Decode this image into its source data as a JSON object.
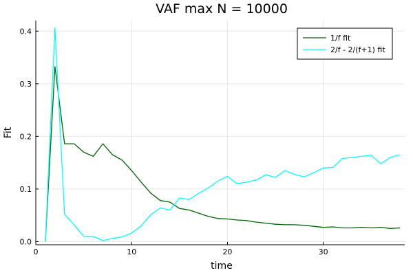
{
  "chart_data": {
    "type": "line",
    "title": "VAF max N = 10000",
    "xlabel": "time",
    "ylabel": "Fit",
    "xlim": [
      0,
      38.5
    ],
    "ylim": [
      -0.006,
      0.42
    ],
    "xticks": [
      0,
      10,
      20,
      30
    ],
    "yticks": [
      0.0,
      0.1,
      0.2,
      0.3,
      0.4
    ],
    "ytick_labels": [
      "0.0",
      "0.1",
      "0.2",
      "0.3",
      "0.4"
    ],
    "grid": true,
    "legend_position": "top-right",
    "x": [
      1,
      2,
      3,
      4,
      5,
      6,
      7,
      8,
      9,
      10,
      11,
      12,
      13,
      14,
      15,
      16,
      17,
      18,
      19,
      20,
      21,
      22,
      23,
      24,
      25,
      26,
      27,
      28,
      29,
      30,
      31,
      32,
      33,
      34,
      35,
      36,
      37,
      38
    ],
    "series": [
      {
        "name": "1/f fit",
        "color": "#006400",
        "values": [
          0.0,
          0.333,
          0.186,
          0.186,
          0.17,
          0.162,
          0.186,
          0.165,
          0.155,
          0.135,
          0.113,
          0.092,
          0.078,
          0.075,
          0.063,
          0.06,
          0.054,
          0.048,
          0.044,
          0.043,
          0.041,
          0.04,
          0.037,
          0.035,
          0.033,
          0.032,
          0.032,
          0.031,
          0.029,
          0.027,
          0.028,
          0.026,
          0.026,
          0.027,
          0.026,
          0.027,
          0.025,
          0.026
        ]
      },
      {
        "name": "2/f - 2/(f+1) fit",
        "color": "#00FFFF",
        "values": [
          0.0,
          0.407,
          0.052,
          0.032,
          0.01,
          0.01,
          0.002,
          0.006,
          0.009,
          0.016,
          0.03,
          0.051,
          0.064,
          0.06,
          0.083,
          0.08,
          0.092,
          0.102,
          0.115,
          0.124,
          0.11,
          0.113,
          0.117,
          0.127,
          0.122,
          0.135,
          0.128,
          0.123,
          0.131,
          0.14,
          0.141,
          0.158,
          0.16,
          0.162,
          0.164,
          0.148,
          0.16,
          0.165
        ]
      }
    ]
  }
}
